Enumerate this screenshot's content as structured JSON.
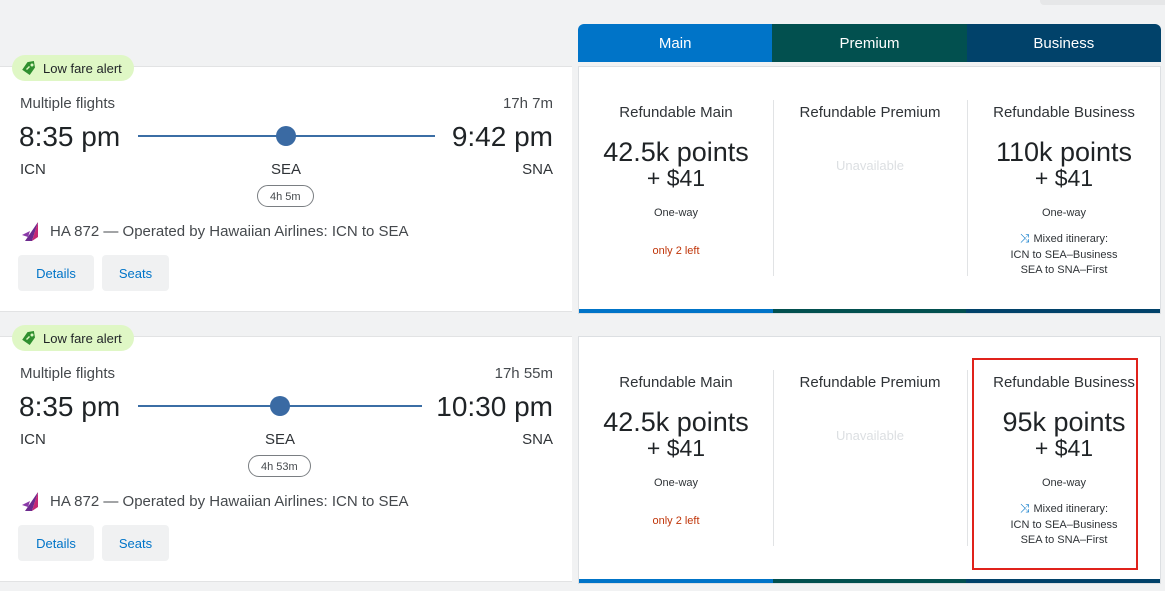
{
  "columns": [
    {
      "label": "Main",
      "color": "#0074c8"
    },
    {
      "label": "Premium",
      "color": "#02504f"
    },
    {
      "label": "Business",
      "color": "#01426a"
    }
  ],
  "flights": [
    {
      "alert": "Low fare alert",
      "summary": "Multiple flights",
      "duration": "17h 7m",
      "depart_time": "8:35 pm",
      "arrive_time": "9:42 pm",
      "origin": "ICN",
      "stop": "SEA",
      "destination": "SNA",
      "layover": "4h 5m",
      "operated_by": "HA 872 — Operated by Hawaiian Airlines: ICN to SEA",
      "details_label": "Details",
      "seats_label": "Seats",
      "fares": {
        "main": {
          "title": "Refundable Main",
          "points": "42.5k points",
          "cash": "+ $41",
          "type": "One-way",
          "availability": "only 2 left"
        },
        "premium": {
          "title": "Refundable Premium",
          "status": "Unavailable"
        },
        "business": {
          "title": "Refundable Business",
          "points": "110k points",
          "cash": "+ $41",
          "type": "One-way",
          "mixed_title": "Mixed itinerary:",
          "mixed_line1": "ICN to SEA–Business",
          "mixed_line2": "SEA to SNA–First"
        }
      }
    },
    {
      "alert": "Low fare alert",
      "summary": "Multiple flights",
      "duration": "17h 55m",
      "depart_time": "8:35 pm",
      "arrive_time": "10:30 pm",
      "origin": "ICN",
      "stop": "SEA",
      "destination": "SNA",
      "layover": "4h 53m",
      "operated_by": "HA 872 — Operated by Hawaiian Airlines: ICN to SEA",
      "details_label": "Details",
      "seats_label": "Seats",
      "fares": {
        "main": {
          "title": "Refundable Main",
          "points": "42.5k points",
          "cash": "+ $41",
          "type": "One-way",
          "availability": "only 2 left"
        },
        "premium": {
          "title": "Refundable Premium",
          "status": "Unavailable"
        },
        "business": {
          "title": "Refundable Business",
          "points": "95k points",
          "cash": "+ $41",
          "type": "One-way",
          "mixed_title": "Mixed itinerary:",
          "mixed_line1": "ICN to SEA–Business",
          "mixed_line2": "SEA to SNA–First",
          "highlighted": true
        }
      }
    }
  ],
  "icons": {
    "alert": "price-tag-icon",
    "airline": "hawaiian-airlines-logo",
    "mixed": "shuffle-icon"
  }
}
